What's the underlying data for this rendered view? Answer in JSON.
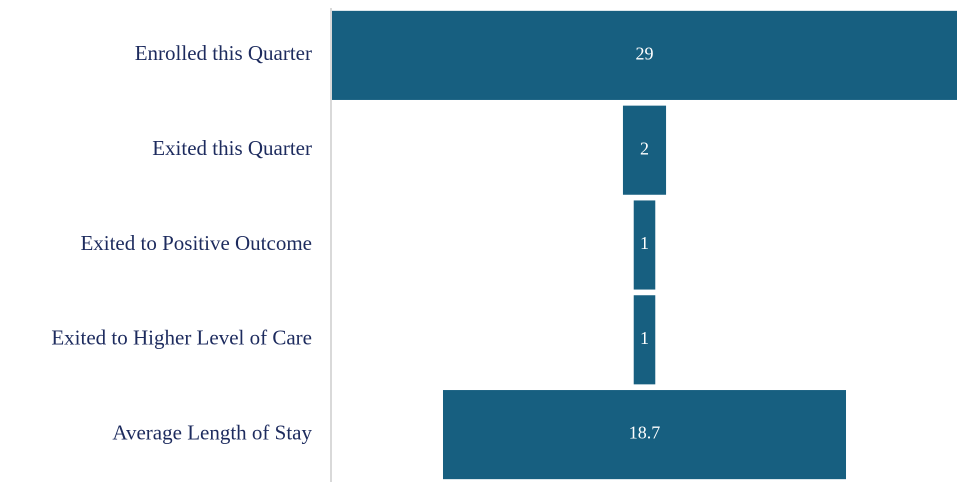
{
  "chart_data": {
    "type": "funnel",
    "categories": [
      "Enrolled this Quarter",
      "Exited this Quarter",
      "Exited to Positive Outcome",
      "Exited to Higher Level of Care",
      "Average Length of Stay"
    ],
    "values": [
      29,
      2,
      1,
      1,
      18.7
    ],
    "color": "#175f80"
  }
}
